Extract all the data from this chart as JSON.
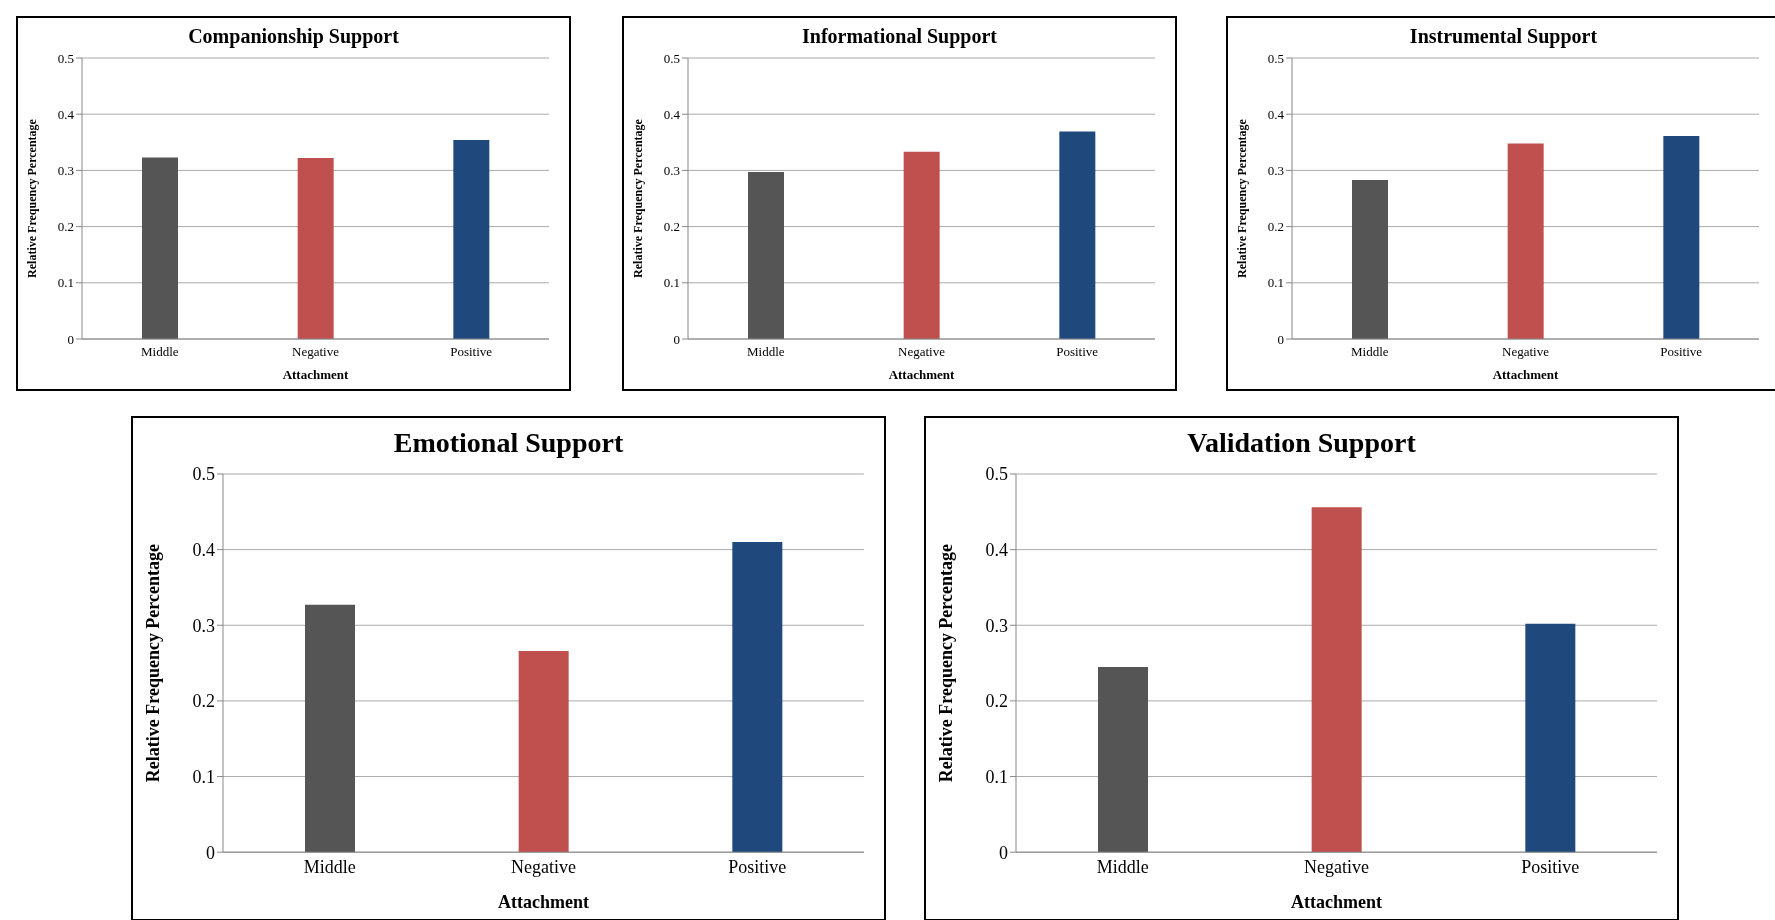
{
  "chart_data": [
    {
      "type": "bar",
      "title": "Companionship Support",
      "xlabel": "Attachment",
      "ylabel": "Relative Frequency Percentage",
      "categories": [
        "Middle",
        "Negative",
        "Positive"
      ],
      "values": [
        0.323,
        0.322,
        0.354
      ],
      "colors": [
        "#555555",
        "#c0504d",
        "#1f497d"
      ],
      "ylim": [
        0,
        0.5
      ],
      "yticks": [
        0,
        0.1,
        0.2,
        0.3,
        0.4,
        0.5
      ],
      "grid": "y"
    },
    {
      "type": "bar",
      "title": "Informational Support",
      "xlabel": "Attachment",
      "ylabel": "Relative Frequency Percentage",
      "categories": [
        "Middle",
        "Negative",
        "Positive"
      ],
      "values": [
        0.297,
        0.333,
        0.369
      ],
      "colors": [
        "#555555",
        "#c0504d",
        "#1f497d"
      ],
      "ylim": [
        0,
        0.5
      ],
      "yticks": [
        0,
        0.1,
        0.2,
        0.3,
        0.4,
        0.5
      ],
      "grid": "y"
    },
    {
      "type": "bar",
      "title": "Instrumental Support",
      "xlabel": "Attachment",
      "ylabel": "Relative Frequency Percentage",
      "categories": [
        "Middle",
        "Negative",
        "Positive"
      ],
      "values": [
        0.283,
        0.348,
        0.361
      ],
      "colors": [
        "#555555",
        "#c0504d",
        "#1f497d"
      ],
      "ylim": [
        0,
        0.5
      ],
      "yticks": [
        0,
        0.1,
        0.2,
        0.3,
        0.4,
        0.5
      ],
      "grid": "y"
    },
    {
      "type": "bar",
      "title": "Emotional Support",
      "xlabel": "Attachment",
      "ylabel": "Relative Frequency Percentage",
      "categories": [
        "Middle",
        "Negative",
        "Positive"
      ],
      "values": [
        0.327,
        0.266,
        0.41
      ],
      "colors": [
        "#555555",
        "#c0504d",
        "#1f497d"
      ],
      "ylim": [
        0,
        0.5
      ],
      "yticks": [
        0,
        0.1,
        0.2,
        0.3,
        0.4,
        0.5
      ],
      "grid": "y"
    },
    {
      "type": "bar",
      "title": "Validation Support",
      "xlabel": "Attachment",
      "ylabel": "Relative Frequency Percentage",
      "categories": [
        "Middle",
        "Negative",
        "Positive"
      ],
      "values": [
        0.245,
        0.456,
        0.302
      ],
      "colors": [
        "#555555",
        "#c0504d",
        "#1f497d"
      ],
      "ylim": [
        0,
        0.5
      ],
      "yticks": [
        0,
        0.1,
        0.2,
        0.3,
        0.4,
        0.5
      ],
      "grid": "y"
    }
  ]
}
